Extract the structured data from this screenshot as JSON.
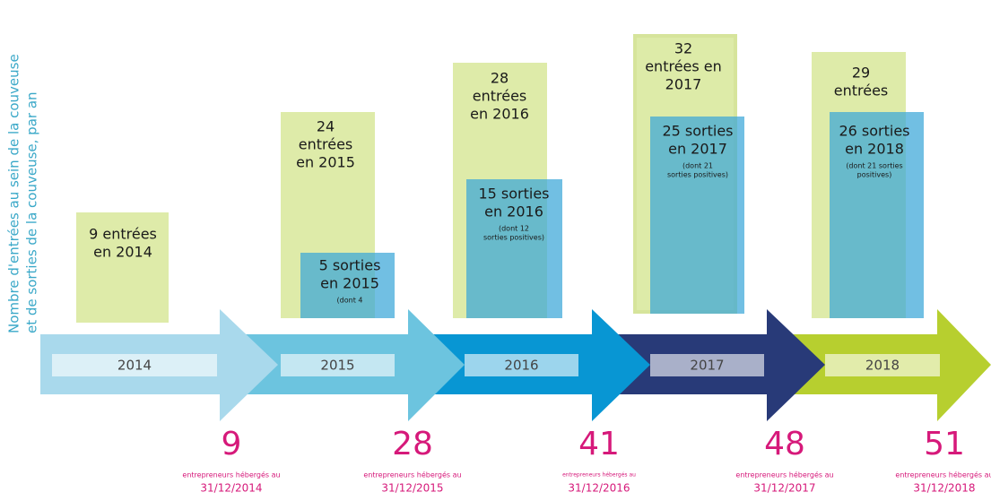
{
  "y_axis_label": [
    "Nombre d'entrées au sein de la couveuse",
    "et de sorties de la couveuse, par an"
  ],
  "years": [
    {
      "year": "2014",
      "entries": [
        "9 entrées",
        "en 2014"
      ],
      "count": "9",
      "caption": "entrepreneurs hébergés au",
      "date": "31/12/2014"
    },
    {
      "year": "2015",
      "entries": [
        "24",
        "entrées",
        "en 2015"
      ],
      "exits": [
        "5 sorties",
        "en 2015"
      ],
      "note": [
        "(dont 4"
      ],
      "count": "28",
      "caption": "entrepreneurs hébergés au",
      "date": "31/12/2015"
    },
    {
      "year": "2016",
      "entries": [
        "28",
        "entrées",
        "en 2016"
      ],
      "exits": [
        "15 sorties",
        "en 2016"
      ],
      "note": [
        "(dont 12",
        "sorties positives)"
      ],
      "count": "41",
      "caption": "entrepreneurs hébergés au",
      "date": "31/12/2016"
    },
    {
      "year": "2017",
      "entries": [
        "32",
        "entrées en",
        "2017"
      ],
      "exits": [
        "25 sorties",
        "en 2017"
      ],
      "note": [
        "(dont 21",
        "sorties positives)"
      ],
      "count": "48",
      "caption": "entrepreneurs hébergés au",
      "date": "31/12/2017"
    },
    {
      "year": "2018",
      "entries": [
        "29",
        "entrées"
      ],
      "exits": [
        "26 sorties",
        "en 2018"
      ],
      "note": [
        "(dont 21 sorties",
        "positives)"
      ],
      "count": "51",
      "caption": "entrepreneurs hébergés au",
      "date": "31/12/2018"
    }
  ]
}
